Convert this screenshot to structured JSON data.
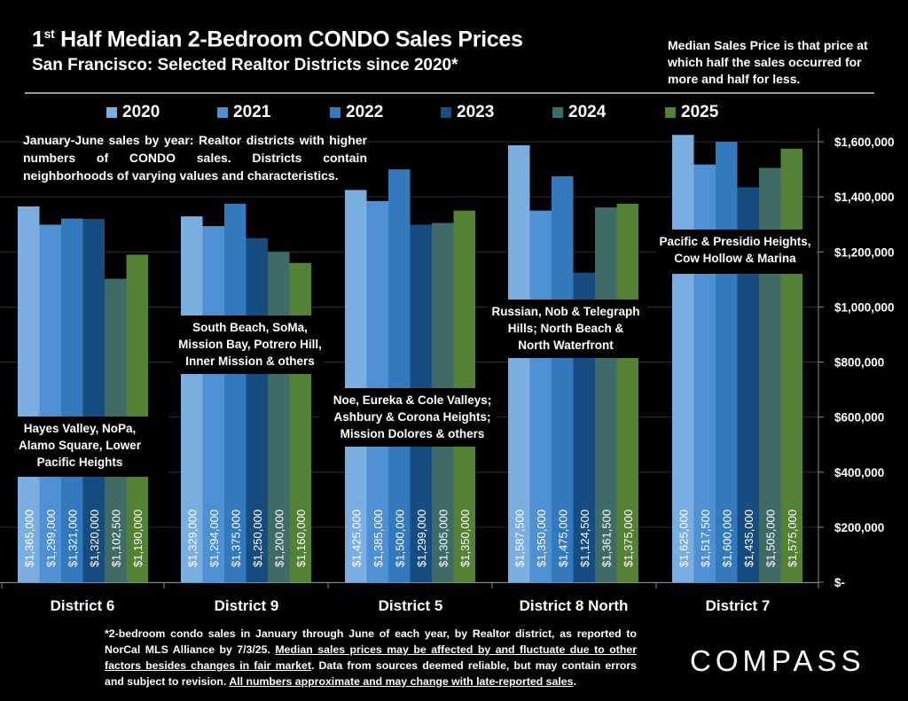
{
  "header": {
    "title_prefix": "1",
    "title_sup": "st",
    "title_rest": " Half Median 2-Bedroom CONDO Sales Prices",
    "subtitle": "San Francisco: Selected Realtor Districts since 2020*",
    "definition": "Median Sales Price is that price at which half the sales occurred for more and half for less."
  },
  "intro": "January-June sales by year: Realtor districts with higher numbers of CONDO sales. Districts contain neighborhoods of varying values and characteristics.",
  "footnote": {
    "part1": "*2-bedroom condo sales in January through June of each year, by Realtor district, as reported to NorCal MLS Alliance by 7/3/25. ",
    "part2_underlined": "Median sales prices may be affected by and fluctuate due to other factors besides changes in fair market",
    "part3": ". Data from sources deemed reliable, but may contain errors and subject to revision. ",
    "part4_underlined": "All numbers approximate and may change with late-reported sales",
    "part5": "."
  },
  "logo": "COMPASS",
  "colors": {
    "2020": "#7aaee0",
    "2021": "#4d90d4",
    "2022": "#3279bd",
    "2023": "#174c80",
    "2024": "#3e6b66",
    "2025": "#548235"
  },
  "chart_data": {
    "type": "bar",
    "title": "1st Half Median 2-Bedroom CONDO Sales Prices",
    "subtitle": "San Francisco: Selected Realtor Districts since 2020*",
    "xlabel": "",
    "ylabel": "",
    "ylim": [
      0,
      1600000
    ],
    "yticks": [
      0,
      200000,
      400000,
      600000,
      800000,
      1000000,
      1200000,
      1400000,
      1600000
    ],
    "ytick_labels": [
      "$-",
      "$200,000",
      "$400,000",
      "$600,000",
      "$800,000",
      "$1,000,000",
      "$1,200,000",
      "$1,400,000",
      "$1,600,000"
    ],
    "y_axis_side": "right",
    "grid": true,
    "legend_position": "top",
    "categories": [
      "District 6",
      "District 9",
      "District 5",
      "District 8 North",
      "District 7"
    ],
    "district_descriptions": [
      "Hayes Valley, NoPa, Alamo Square, Lower Pacific Heights",
      "South Beach, SoMa, Mission Bay, Potrero Hill, Inner Mission & others",
      "Noe, Eureka & Cole Valleys; Ashbury & Corona Heights; Mission Dolores & others",
      "Russian, Nob & Telegraph Hills; North Beach & North Waterfront",
      "Pacific & Presidio Heights, Cow Hollow & Marina"
    ],
    "series": [
      {
        "name": "2020",
        "values": [
          1365000,
          1329000,
          1425000,
          1587500,
          1625000
        ],
        "labels": [
          "$1,365,000",
          "$1,329,000",
          "$1,425,000",
          "$1,587,500",
          "$1,625,000"
        ]
      },
      {
        "name": "2021",
        "values": [
          1299000,
          1294000,
          1385000,
          1350000,
          1517500
        ],
        "labels": [
          "$1,299,000",
          "$1,294,000",
          "$1,385,000",
          "$1,350,000",
          "$1,517,500"
        ]
      },
      {
        "name": "2022",
        "values": [
          1321000,
          1375000,
          1500000,
          1475000,
          1600000
        ],
        "labels": [
          "$1,321,000",
          "$1,375,000",
          "$1,500,000",
          "$1,475,000",
          "$1,600,000"
        ]
      },
      {
        "name": "2023",
        "values": [
          1320000,
          1250000,
          1299000,
          1124500,
          1435000
        ],
        "labels": [
          "$1,320,000",
          "$1,250,000",
          "$1,299,000",
          "$1,124,500",
          "$1,435,000"
        ]
      },
      {
        "name": "2024",
        "values": [
          1102500,
          1200000,
          1305000,
          1361500,
          1505000
        ],
        "labels": [
          "$1,102,500",
          "$1,200,000",
          "$1,305,000",
          "$1,361,500",
          "$1,505,000"
        ]
      },
      {
        "name": "2025",
        "values": [
          1190000,
          1160000,
          1350000,
          1375000,
          1575000
        ],
        "labels": [
          "$1,190,000",
          "$1,160,000",
          "$1,350,000",
          "$1,375,000",
          "$1,575,000"
        ]
      }
    ]
  }
}
